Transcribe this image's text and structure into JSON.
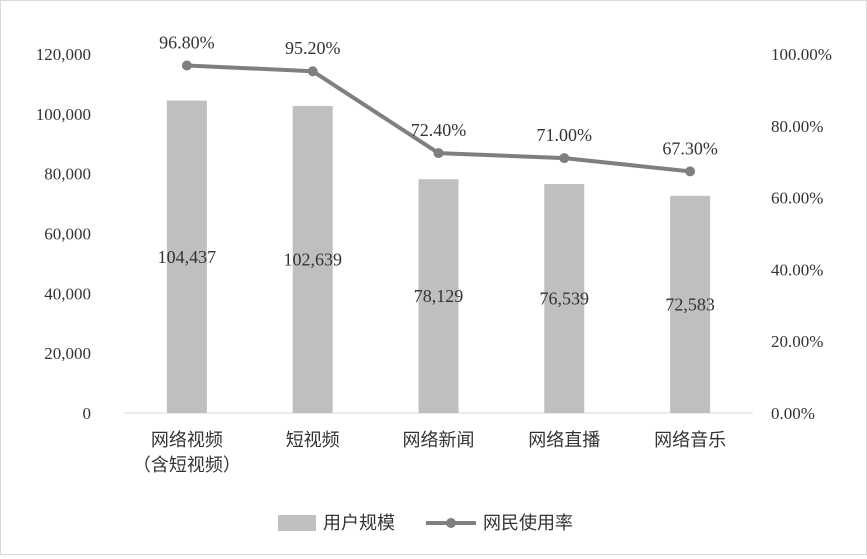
{
  "chart_data": {
    "type": "bar",
    "categories": [
      [
        "网络视频",
        "（含短视频）"
      ],
      [
        "短视频"
      ],
      [
        "网络新闻"
      ],
      [
        "网络直播"
      ],
      [
        "网络音乐"
      ]
    ],
    "series": [
      {
        "name": "用户规模",
        "type": "bar",
        "axis": "left",
        "values": [
          104437,
          102639,
          78129,
          76539,
          72583
        ],
        "labels": [
          "104,437",
          "102,639",
          "78,129",
          "76,539",
          "72,583"
        ],
        "color": "#bfbfbf"
      },
      {
        "name": "网民使用率",
        "type": "line",
        "axis": "right",
        "values": [
          96.8,
          95.2,
          72.4,
          71.0,
          67.3
        ],
        "labels": [
          "96.80%",
          "95.20%",
          "72.40%",
          "71.00%",
          "67.30%"
        ],
        "color": "#7f7f7f"
      }
    ],
    "y_left": {
      "ylim": [
        0,
        120000
      ],
      "ticks": [
        0,
        20000,
        40000,
        60000,
        80000,
        100000,
        120000
      ],
      "tick_labels": [
        "0",
        "20,000",
        "40,000",
        "60,000",
        "80,000",
        "100,000",
        "120,000"
      ]
    },
    "y_right": {
      "ylim": [
        0,
        100
      ],
      "ticks": [
        0,
        20,
        40,
        60,
        80,
        100
      ],
      "tick_labels": [
        "0.00%",
        "20.00%",
        "40.00%",
        "60.00%",
        "80.00%",
        "100.00%"
      ]
    },
    "grid": false,
    "legend": "bottom-center"
  }
}
